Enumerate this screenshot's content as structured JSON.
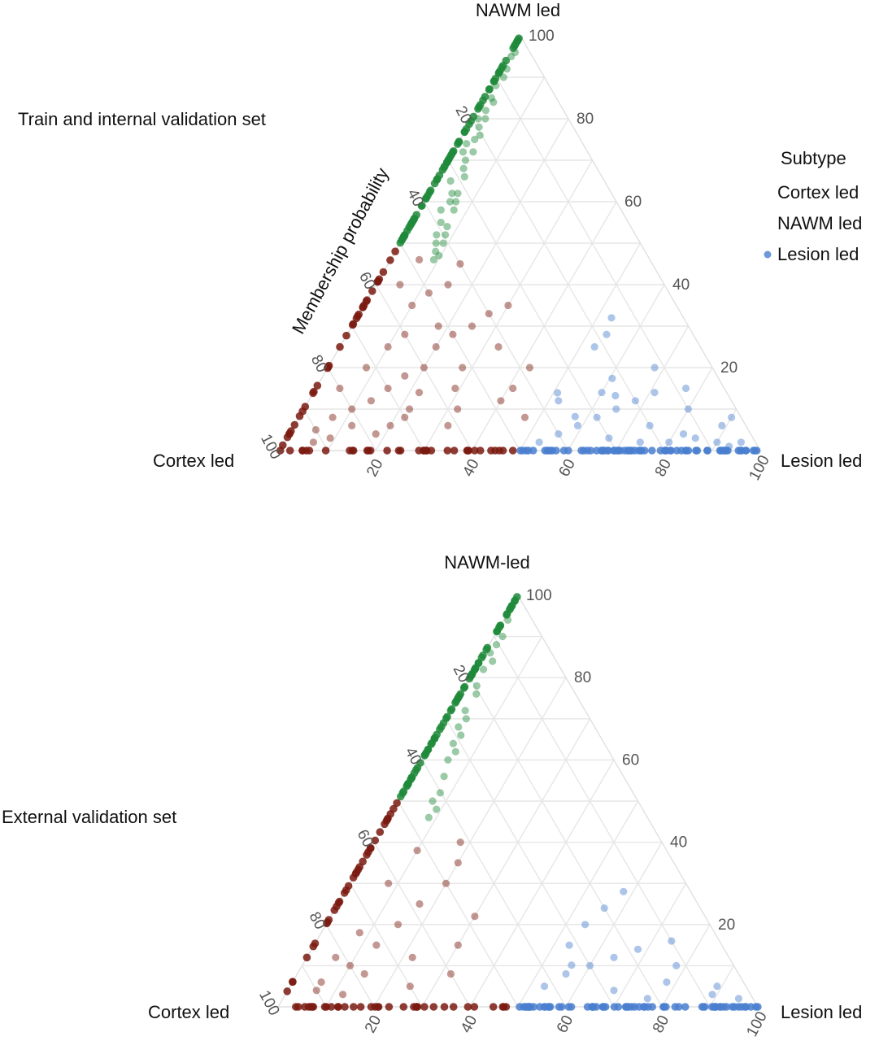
{
  "legend": {
    "title": "Subtype",
    "entries": [
      {
        "label": "Cortex led",
        "color": "#7a1a10",
        "marker": false
      },
      {
        "label": "NAWM led",
        "color": "#1e8a3a",
        "marker": false
      },
      {
        "label": "Lesion led",
        "color": "#4a7fcf",
        "marker": true
      }
    ]
  },
  "chart_data": [
    {
      "type": "scatter",
      "subtype": "ternary",
      "title": "Train and internal validation set",
      "axes": {
        "top": "NAWM led",
        "left": "Cortex led",
        "right": "Lesion led",
        "left_edge_title": "Membership probability"
      },
      "range": [
        0,
        100
      ],
      "ticks": [
        20,
        40,
        60,
        80,
        100
      ],
      "grid": true,
      "legend_position": "right",
      "series": [
        {
          "name": "Cortex led",
          "color": "#7a1a10",
          "points": [
            [
              90,
              5
            ],
            [
              85,
              8
            ],
            [
              80,
              10
            ],
            [
              75,
              12
            ],
            [
              70,
              15
            ],
            [
              65,
              18
            ],
            [
              60,
              20
            ],
            [
              55,
              25
            ],
            [
              50,
              28
            ],
            [
              45,
              30
            ],
            [
              40,
              33
            ],
            [
              35,
              35
            ],
            [
              52,
              20
            ],
            [
              48,
              12
            ],
            [
              45,
              8
            ],
            [
              58,
              10
            ],
            [
              62,
              6
            ],
            [
              70,
              8
            ],
            [
              78,
              4
            ],
            [
              88,
              3
            ],
            [
              60,
              28
            ],
            [
              55,
              35
            ],
            [
              50,
              38
            ],
            [
              45,
              40
            ],
            [
              40,
              45
            ],
            [
              48,
              46
            ],
            [
              55,
              40
            ],
            [
              65,
              25
            ],
            [
              72,
              20
            ],
            [
              80,
              15
            ],
            [
              68,
              10
            ],
            [
              42,
              25
            ],
            [
              38,
              20
            ],
            [
              44,
              15
            ],
            [
              56,
              15
            ],
            [
              64,
              14
            ],
            [
              74,
              6
            ],
            [
              82,
              6
            ],
            [
              92,
              2
            ],
            [
              52,
              30
            ]
          ]
        },
        {
          "name": "NAWM led",
          "color": "#1e8a3a",
          "points": [
            [
              2,
              95
            ],
            [
              4,
              92
            ],
            [
              3,
              88
            ],
            [
              5,
              85
            ],
            [
              6,
              82
            ],
            [
              4,
              80
            ],
            [
              8,
              78
            ],
            [
              10,
              75
            ],
            [
              7,
              72
            ],
            [
              12,
              70
            ],
            [
              14,
              68
            ],
            [
              10,
              65
            ],
            [
              16,
              62
            ],
            [
              18,
              60
            ],
            [
              15,
              58
            ],
            [
              20,
              55
            ],
            [
              22,
              52
            ],
            [
              25,
              50
            ],
            [
              28,
              48
            ],
            [
              30,
              46
            ],
            [
              5,
              90
            ],
            [
              8,
              84
            ],
            [
              12,
              76
            ],
            [
              6,
              74
            ],
            [
              18,
              66
            ],
            [
              24,
              58
            ],
            [
              20,
              62
            ],
            [
              26,
              54
            ],
            [
              30,
              50
            ],
            [
              32,
              47
            ],
            [
              3,
              96
            ],
            [
              9,
              80
            ],
            [
              14,
              72
            ],
            [
              22,
              60
            ],
            [
              28,
              52
            ]
          ]
        },
        {
          "name": "Lesion led",
          "color": "#4a7fcf",
          "points": [
            [
              45,
              2
            ],
            [
              40,
              4
            ],
            [
              35,
              6
            ],
            [
              30,
              8
            ],
            [
              25,
              10
            ],
            [
              20,
              12
            ],
            [
              15,
              14
            ],
            [
              10,
              10
            ],
            [
              5,
              6
            ],
            [
              3,
              2
            ],
            [
              38,
              15
            ],
            [
              32,
              18
            ],
            [
              28,
              22
            ],
            [
              22,
              25
            ],
            [
              18,
              28
            ],
            [
              15,
              32
            ],
            [
              12,
              20
            ],
            [
              8,
              15
            ],
            [
              42,
              10
            ],
            [
              36,
              12
            ],
            [
              26,
              14
            ],
            [
              20,
              6
            ],
            [
              14,
              4
            ],
            [
              8,
              2
            ],
            [
              2,
              8
            ],
            [
              30,
              3
            ],
            [
              24,
              2
            ],
            [
              18,
              2
            ],
            [
              12,
              3
            ],
            [
              6,
              1
            ]
          ]
        }
      ]
    },
    {
      "type": "scatter",
      "subtype": "ternary",
      "title": "External validation set",
      "axes": {
        "top": "NAWM-led",
        "left": "Cortex led",
        "right": "Lesion led"
      },
      "range": [
        0,
        100
      ],
      "ticks": [
        20,
        40,
        60,
        80,
        100
      ],
      "grid": true,
      "series": [
        {
          "name": "Cortex led",
          "color": "#7a1a10",
          "points": [
            [
              88,
              6
            ],
            [
              80,
              10
            ],
            [
              72,
              15
            ],
            [
              65,
              20
            ],
            [
              58,
              25
            ],
            [
              50,
              30
            ],
            [
              45,
              35
            ],
            [
              55,
              15
            ],
            [
              60,
              8
            ],
            [
              70,
              5
            ],
            [
              78,
              8
            ],
            [
              85,
              3
            ],
            [
              48,
              22
            ],
            [
              52,
              38
            ],
            [
              62,
              30
            ],
            [
              42,
              40
            ],
            [
              66,
              12
            ],
            [
              74,
              18
            ],
            [
              82,
              12
            ],
            [
              90,
              4
            ]
          ]
        },
        {
          "name": "NAWM led",
          "color": "#1e8a3a",
          "points": [
            [
              3,
              94
            ],
            [
              5,
              88
            ],
            [
              6,
              82
            ],
            [
              8,
              78
            ],
            [
              10,
              72
            ],
            [
              12,
              68
            ],
            [
              15,
              64
            ],
            [
              18,
              60
            ],
            [
              22,
              56
            ],
            [
              26,
              52
            ],
            [
              30,
              48
            ],
            [
              6,
              90
            ],
            [
              9,
              84
            ],
            [
              14,
              70
            ],
            [
              20,
              62
            ],
            [
              24,
              50
            ],
            [
              4,
              86
            ],
            [
              11,
              76
            ],
            [
              17,
              66
            ],
            [
              28,
              46
            ]
          ]
        },
        {
          "name": "Lesion led",
          "color": "#4a7fcf",
          "points": [
            [
              42,
              5
            ],
            [
              36,
              8
            ],
            [
              30,
              10
            ],
            [
              24,
              12
            ],
            [
              18,
              14
            ],
            [
              12,
              10
            ],
            [
              6,
              5
            ],
            [
              3,
              2
            ],
            [
              34,
              16
            ],
            [
              26,
              20
            ],
            [
              20,
              24
            ],
            [
              14,
              28
            ],
            [
              10,
              16
            ],
            [
              40,
              12
            ],
            [
              16,
              6
            ],
            [
              8,
              3
            ],
            [
              28,
              4
            ],
            [
              22,
              2
            ]
          ]
        }
      ]
    }
  ]
}
